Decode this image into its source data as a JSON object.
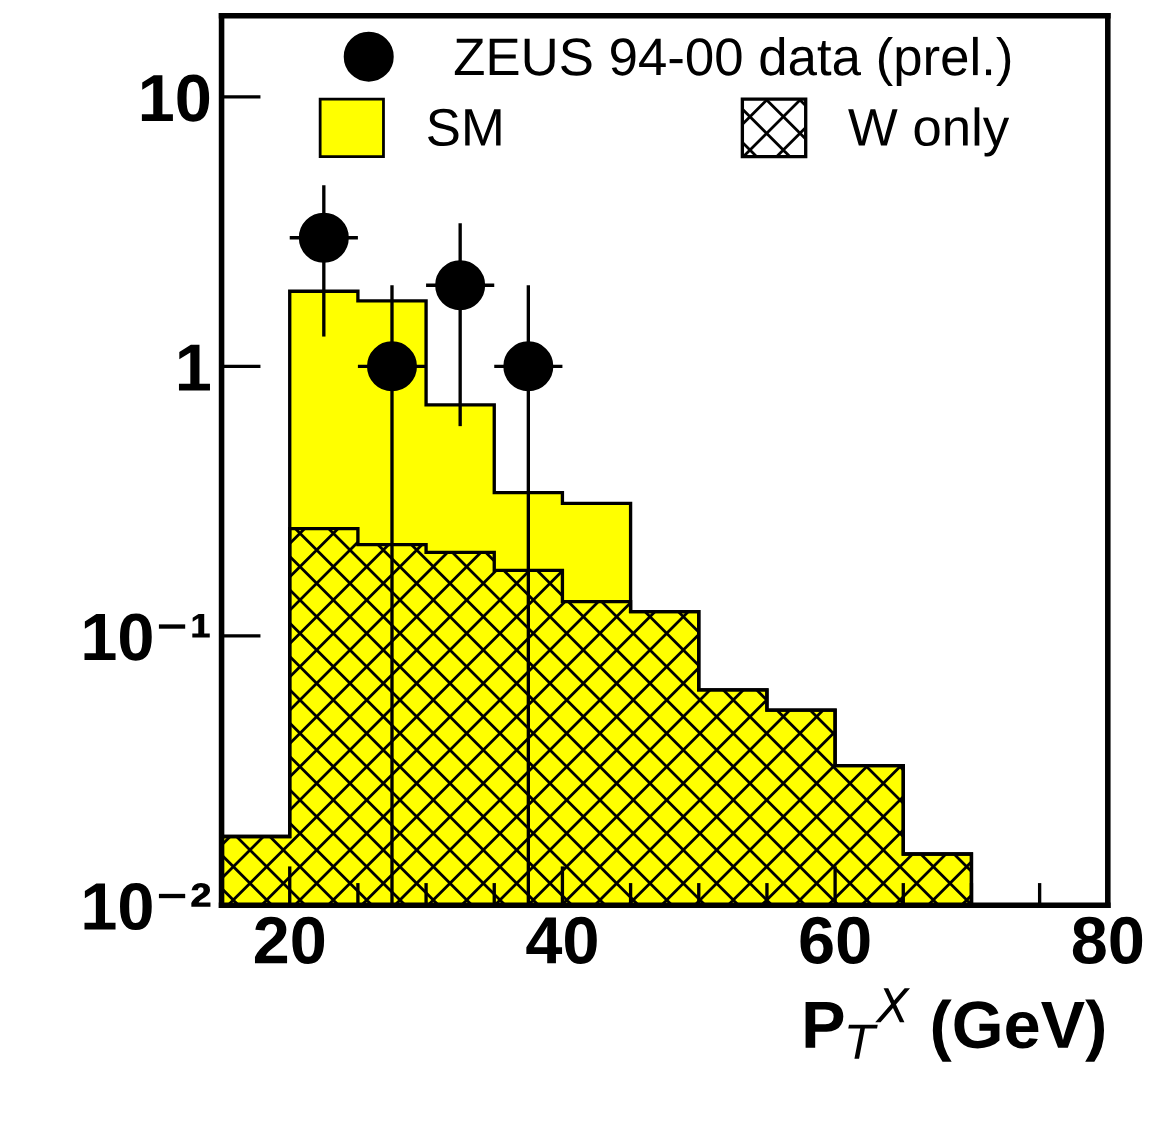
{
  "chart_data": {
    "type": "histogram",
    "xlabel": "P$_{T}$$^{X}$ (GeV)",
    "bins": [
      15,
      20,
      25,
      30,
      35,
      40,
      45,
      50,
      55,
      60,
      65,
      70
    ],
    "series": [
      {
        "name": "SM",
        "color": "#ffff00",
        "values": [
          0.018,
          1.9,
          1.75,
          0.72,
          0.34,
          0.31,
          0.123,
          0.063,
          0.053,
          0.033,
          0.0155
        ]
      },
      {
        "name": "W only",
        "color": "#000000",
        "values": [
          0.018,
          0.25,
          0.218,
          0.204,
          0.175,
          0.134,
          0.123,
          0.063,
          0.053,
          0.033,
          0.0155
        ]
      },
      {
        "name": "ZEUS 94-00 data (prel.)",
        "type": "scatter",
        "color": "#000000",
        "x": [
          22.5,
          27.5,
          32.5,
          37.5
        ],
        "values": [
          3.0,
          1.0,
          2.0,
          1.0
        ],
        "errors": [
          [
            1.29,
            4.7
          ],
          [
            0.01,
            2.0
          ],
          [
            0.6,
            3.4
          ],
          [
            0.01,
            2.0
          ]
        ],
        "xerrors": [
          [
            20,
            25
          ],
          [
            25,
            30
          ],
          [
            30,
            35
          ],
          [
            35,
            40
          ]
        ]
      }
    ],
    "log": "y",
    "xlim": [
      15,
      80
    ],
    "xticks": [
      20,
      40,
      60,
      80
    ],
    "ylim": [
      0.01,
      20
    ],
    "yticks": [
      {
        "value": 0.01,
        "label": "10⁻²"
      },
      {
        "value": 0.1,
        "label": "10⁻¹"
      },
      1,
      10
    ],
    "marker": "circle",
    "grid": false,
    "legend": "top"
  }
}
